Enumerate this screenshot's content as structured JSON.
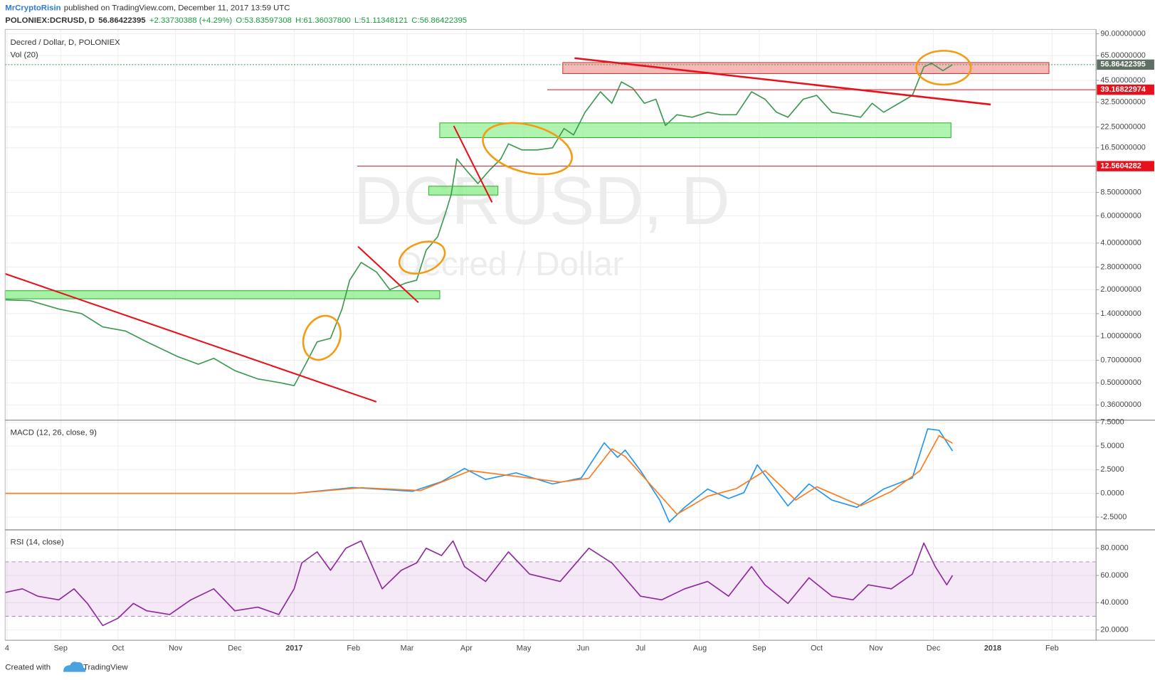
{
  "header": {
    "author": "MrCryptoRisin",
    "published": "published on TradingView.com, December 11, 2017 13:59 UTC",
    "symbol": "POLONIEX:DCRUSD, D",
    "price": "56.86422395",
    "change": "+2.33730388 (+4.29%)",
    "open": "O:53.83597308",
    "high": "H:61.36037800",
    "low": "L:51.11348121",
    "close": "C:56.86422395",
    "watermark": "DCRUSD, D",
    "watermark_sub": "Decred / Dollar",
    "footer": "Created with",
    "brand": "TradingView"
  },
  "chart_data": [
    {
      "type": "line",
      "title": "Decred / Dollar, D, POLONIEX",
      "volume_label": "Vol (20)",
      "log_scale": true,
      "grid": true,
      "xlim": [
        0,
        570
      ],
      "xticks": [
        {
          "value": 1,
          "label": "4"
        },
        {
          "value": 29,
          "label": "Sep"
        },
        {
          "value": 59,
          "label": "Oct"
        },
        {
          "value": 89,
          "label": "Nov"
        },
        {
          "value": 120,
          "label": "Dec"
        },
        {
          "value": 151,
          "label": "2017"
        },
        {
          "value": 182,
          "label": "Feb"
        },
        {
          "value": 210,
          "label": "Mar"
        },
        {
          "value": 241,
          "label": "Apr"
        },
        {
          "value": 271,
          "label": "May"
        },
        {
          "value": 302,
          "label": "Jun"
        },
        {
          "value": 332,
          "label": "Jul"
        },
        {
          "value": 363,
          "label": "Aug"
        },
        {
          "value": 394,
          "label": "Sep"
        },
        {
          "value": 424,
          "label": "Oct"
        },
        {
          "value": 455,
          "label": "Nov"
        },
        {
          "value": 485,
          "label": "Dec"
        },
        {
          "value": 516,
          "label": "2018"
        },
        {
          "value": 547,
          "label": "Feb"
        }
      ],
      "ylim": [
        0.29,
        96
      ],
      "yticks": [
        {
          "value": 90,
          "label": "90.00000000"
        },
        {
          "value": 65,
          "label": "65.00000000"
        },
        {
          "value": 45,
          "label": "45.00000000"
        },
        {
          "value": 32.5,
          "label": "32.50000000"
        },
        {
          "value": 22.5,
          "label": "22.50000000"
        },
        {
          "value": 16.5,
          "label": "16.50000000"
        },
        {
          "value": 8.5,
          "label": "8.50000000"
        },
        {
          "value": 6,
          "label": "6.00000000"
        },
        {
          "value": 4,
          "label": "4.00000000"
        },
        {
          "value": 2.8,
          "label": "2.80000000"
        },
        {
          "value": 2,
          "label": "2.00000000"
        },
        {
          "value": 1.4,
          "label": "1.40000000"
        },
        {
          "value": 1,
          "label": "1.00000000"
        },
        {
          "value": 0.7,
          "label": "0.70000000"
        },
        {
          "value": 0.5,
          "label": "0.50000000"
        },
        {
          "value": 0.36,
          "label": "0.36000000"
        }
      ],
      "price_lines": [
        {
          "value": 56.86422395,
          "color": "#5f6f63"
        },
        {
          "value": 39.16822974,
          "color": "#e8111b"
        },
        {
          "value": 12.5604282,
          "color": "#e8111b"
        }
      ],
      "series": [
        {
          "color": "#3c9a50",
          "x": [
            0,
            13,
            28,
            40,
            51,
            63,
            74,
            90,
            101,
            109,
            120,
            132,
            144,
            151,
            157,
            163,
            170,
            176,
            180,
            186,
            194,
            201,
            209,
            215,
            220,
            226,
            230,
            233,
            236,
            242,
            247,
            253,
            259,
            263,
            270,
            278,
            286,
            292,
            297,
            303,
            311,
            317,
            322,
            328,
            334,
            340,
            345,
            351,
            359,
            367,
            374,
            382,
            390,
            397,
            403,
            409,
            417,
            424,
            432,
            440,
            447,
            453,
            459,
            467,
            474,
            480,
            484,
            490,
            495
          ],
          "values": [
            1.72,
            1.7,
            1.5,
            1.4,
            1.15,
            1.08,
            0.92,
            0.74,
            0.66,
            0.72,
            0.6,
            0.53,
            0.5,
            0.48,
            0.66,
            0.92,
            0.97,
            1.5,
            2.3,
            3.0,
            2.6,
            2.0,
            2.2,
            2.3,
            3.6,
            4.4,
            6.2,
            8.2,
            14,
            11.4,
            9.7,
            11.8,
            14,
            17.5,
            16,
            16,
            16.5,
            22,
            20,
            28,
            38,
            32,
            44,
            40,
            32,
            34,
            23,
            27,
            26,
            28,
            27,
            27,
            38,
            34,
            28,
            26,
            34,
            36,
            28,
            27,
            26,
            32,
            28,
            32,
            36,
            55,
            58,
            52,
            56.86422395
          ]
        }
      ]
    },
    {
      "type": "line",
      "title": "MACD (12, 26, close, 9)",
      "ylim": [
        -3.85,
        7.65
      ],
      "yticks": [
        {
          "value": 7.5,
          "label": "7.5000"
        },
        {
          "value": 5,
          "label": "5.0000"
        },
        {
          "value": 2.5,
          "label": "2.5000"
        },
        {
          "value": 0,
          "label": "0.0000"
        },
        {
          "value": -2.5,
          "label": "-2.5000"
        }
      ],
      "series": [
        {
          "color": "#2196f3",
          "x": [
            0,
            151,
            182,
            213,
            228,
            240,
            251,
            267,
            286,
            301,
            313,
            320,
            324,
            332,
            342,
            347,
            355,
            367,
            378,
            386,
            393,
            401,
            409,
            420,
            432,
            445,
            459,
            474,
            482,
            488,
            495
          ],
          "values": [
            0,
            0,
            0.62,
            0.23,
            1.24,
            2.63,
            1.47,
            2.17,
            1.0,
            1.63,
            5.34,
            3.8,
            4.57,
            2.4,
            -0.7,
            -3.03,
            -1.47,
            0.46,
            -0.54,
            0.08,
            3.02,
            0.85,
            -1.32,
            1.0,
            -0.7,
            -1.47,
            0.46,
            1.63,
            6.81,
            6.66,
            4.49
          ]
        },
        {
          "color": "#ff7a1a",
          "x": [
            0,
            151,
            186,
            217,
            243,
            267,
            290,
            305,
            317,
            324,
            336,
            351,
            367,
            382,
            397,
            413,
            424,
            447,
            463,
            478,
            488,
            495
          ],
          "values": [
            0,
            0,
            0.6,
            0.3,
            2.4,
            1.8,
            1.2,
            1.6,
            4.7,
            3.9,
            1.2,
            -2.2,
            -0.3,
            0.5,
            2.4,
            -0.7,
            0.7,
            -1.3,
            0.2,
            2.4,
            6.1,
            5.3
          ]
        }
      ]
    },
    {
      "type": "line",
      "title": "RSI (14, close)",
      "ylim": [
        12.4,
        92.4
      ],
      "yticks": [
        {
          "value": 80,
          "label": "80.0000"
        },
        {
          "value": 60,
          "label": "60.0000"
        },
        {
          "value": 40,
          "label": "40.0000"
        },
        {
          "value": 20,
          "label": "20.0000"
        }
      ],
      "band": [
        30,
        70
      ],
      "series": [
        {
          "color": "#8e2a9e",
          "x": [
            0,
            9,
            17,
            28,
            36,
            43,
            51,
            59,
            67,
            74,
            86,
            97,
            109,
            120,
            132,
            143,
            151,
            155,
            163,
            170,
            178,
            186,
            197,
            207,
            215,
            220,
            228,
            234,
            240,
            251,
            263,
            274,
            290,
            305,
            317,
            332,
            343,
            355,
            367,
            378,
            390,
            397,
            409,
            420,
            432,
            443,
            451,
            463,
            474,
            480,
            486,
            492,
            495
          ],
          "values": [
            47.5,
            50.2,
            44.8,
            42.1,
            50.2,
            39.4,
            23.2,
            28.6,
            39.4,
            34,
            31.3,
            42.1,
            50.2,
            34,
            36.7,
            31.3,
            50.2,
            69.2,
            77.3,
            63.8,
            80,
            85.4,
            50.2,
            63.8,
            69.2,
            80,
            74.6,
            85.4,
            66.5,
            55.6,
            77.3,
            61,
            55.6,
            80,
            69.2,
            44.8,
            42.1,
            50.2,
            55.6,
            44.8,
            66.5,
            53.1,
            39.4,
            58.3,
            44.8,
            42.1,
            53.1,
            50.2,
            61,
            83.8,
            66.5,
            53.1,
            60
          ]
        }
      ]
    }
  ]
}
